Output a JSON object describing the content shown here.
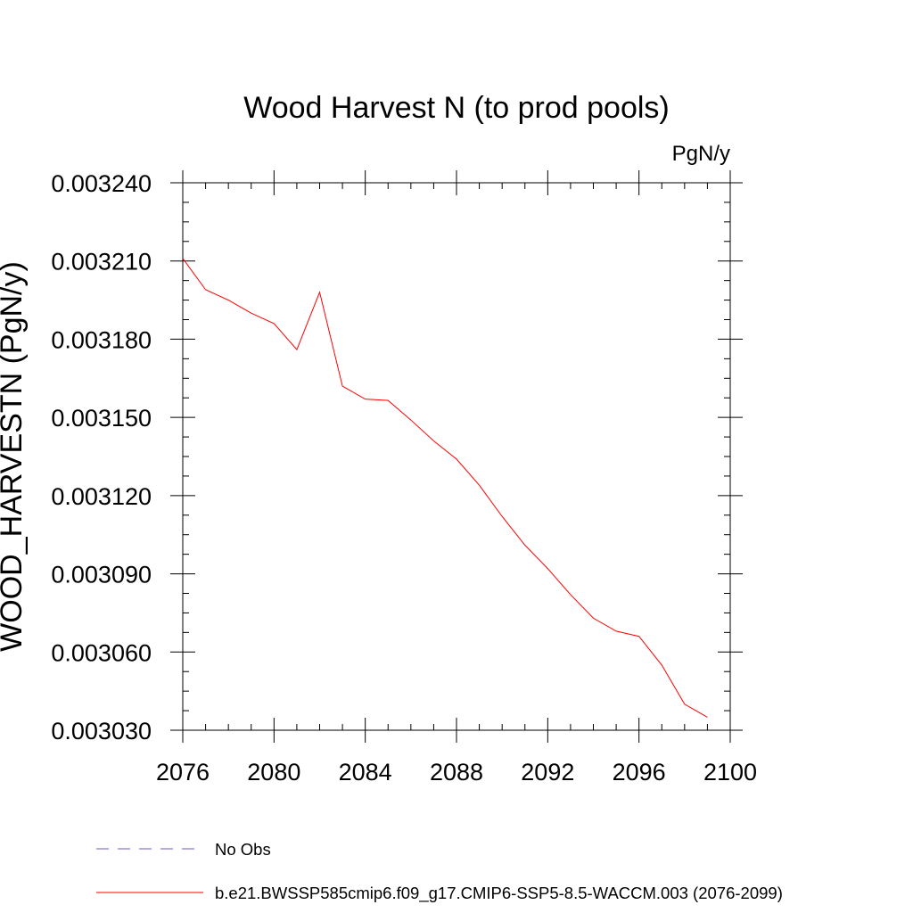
{
  "chart_data": {
    "type": "line",
    "title": "Wood Harvest N (to prod pools)",
    "units": "PgN/y",
    "ylabel": "WOOD_HARVESTN  (PgN/y)",
    "xlabel": "",
    "xlim": [
      2076,
      2100
    ],
    "ylim": [
      0.00303,
      0.00324
    ],
    "x_ticks": [
      2076,
      2080,
      2084,
      2088,
      2092,
      2096,
      2100
    ],
    "x_tick_labels": [
      "2076",
      "2080",
      "2084",
      "2088",
      "2092",
      "2096",
      "2100"
    ],
    "y_ticks": [
      0.00303,
      0.00306,
      0.00309,
      0.00312,
      0.00315,
      0.00318,
      0.00321,
      0.00324
    ],
    "y_tick_labels": [
      "0.003030",
      "0.003060",
      "0.003090",
      "0.003120",
      "0.003150",
      "0.003180",
      "0.003210",
      "0.003240"
    ],
    "grid": false,
    "legend_position": "bottom",
    "series": [
      {
        "name": "No Obs",
        "color": "#6a5acd",
        "dash": "dashed",
        "x": [],
        "values": []
      },
      {
        "name": "b.e21.BWSSP585cmip6.f09_g17.CMIP6-SSP5-8.5-WACCM.003 (2076-2099)",
        "color": "#ff0000",
        "dash": "solid",
        "x": [
          2076,
          2077,
          2078,
          2079,
          2080,
          2081,
          2082,
          2083,
          2084,
          2085,
          2086,
          2087,
          2088,
          2089,
          2090,
          2091,
          2092,
          2093,
          2094,
          2095,
          2096,
          2097,
          2098,
          2099
        ],
        "values": [
          0.003211,
          0.003199,
          0.003195,
          0.00319,
          0.003186,
          0.003176,
          0.003198,
          0.003162,
          0.003157,
          0.0031565,
          0.003149,
          0.003141,
          0.003134,
          0.003124,
          0.003112,
          0.003101,
          0.003092,
          0.003082,
          0.003073,
          0.003068,
          0.003066,
          0.003055,
          0.00304,
          0.003035
        ]
      }
    ]
  }
}
